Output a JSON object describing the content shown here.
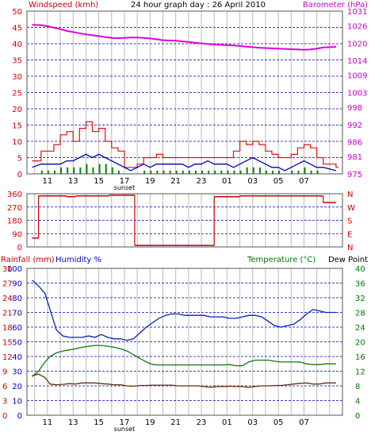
{
  "header": {
    "left_title": "Windspeed (kmh)",
    "center_title": "24 hour graph day : 26 April 2010",
    "right_title": "Barometer (hPa)"
  },
  "bottom_header": {
    "rain_label": "Rainfall (mm)",
    "humidity_label": "Humidity %",
    "temp_label": "Temperature (°C)",
    "dew_label": "Dew Point"
  },
  "colors": {
    "wind": "#cc0000",
    "gust": "#dd1111",
    "avg_wind": "#0000bb",
    "low_wind": "#008800",
    "barometer": "#e000e0",
    "direction": "#cc0000",
    "humidity": "#0022bb",
    "temperature": "#117711",
    "dewpoint": "#663300",
    "grid_h": "#0000aa",
    "grid_v": "#bbbbbb",
    "left_axis": "#cc0000",
    "right_axis_top": "#cc00cc",
    "right_axis_bottom": "#007700",
    "humidity_axis": "#0000cc"
  },
  "chart_data": [
    {
      "type": "line",
      "name": "wind-barometer",
      "title": "24 hour graph day : 26 April 2010",
      "x_tick_labels": [
        "11",
        "13",
        "15",
        "17",
        "19",
        "21",
        "23",
        "01",
        "03",
        "05",
        "07"
      ],
      "x_marker": "sunset",
      "y_left": {
        "label": "Windspeed (kmh)",
        "ticks": [
          0,
          5,
          10,
          15,
          20,
          25,
          30,
          35,
          40,
          45,
          50
        ],
        "range": [
          0,
          50
        ]
      },
      "y_right": {
        "label": "Barometer (hPa)",
        "ticks": [
          975,
          981,
          986,
          992,
          998,
          1003,
          1009,
          1014,
          1020,
          1026,
          1031
        ],
        "range": [
          975,
          1031
        ]
      },
      "hours": [
        9.8,
        10.5,
        11,
        11.5,
        12,
        12.5,
        13,
        13.5,
        14,
        14.5,
        15,
        15.5,
        16,
        16.5,
        17,
        17.5,
        18,
        18.5,
        19,
        19.5,
        20,
        20.5,
        21,
        21.5,
        22,
        22.5,
        23,
        23.5,
        24,
        24.5,
        25,
        25.5,
        26,
        26.5,
        27,
        27.5,
        28,
        28.5,
        29,
        29.5,
        30,
        30.5,
        31,
        31.5,
        32,
        32.5,
        33.5
      ],
      "series": [
        {
          "name": "Barometer",
          "axis": "right",
          "values": [
            1026.3,
            1026.2,
            1025.8,
            1025.3,
            1024.8,
            1024.2,
            1023.8,
            1023.4,
            1023,
            1022.7,
            1022.4,
            1022.1,
            1021.8,
            1021.7,
            1021.8,
            1021.9,
            1021.9,
            1021.8,
            1021.6,
            1021.3,
            1021.0,
            1020.9,
            1020.8,
            1020.6,
            1020.4,
            1020.1,
            1019.9,
            1019.7,
            1019.5,
            1019.4,
            1019.3,
            1019.2,
            1019.0,
            1018.8,
            1018.6,
            1018.4,
            1018.3,
            1018.2,
            1018.1,
            1018.0,
            1017.9,
            1017.8,
            1017.7,
            1017.8,
            1018.1,
            1018.5,
            1018.7
          ]
        },
        {
          "name": "Gust",
          "axis": "left",
          "values": [
            4,
            7,
            7,
            9,
            12,
            13,
            10,
            14,
            16,
            13,
            14,
            10,
            8,
            7,
            2,
            2,
            3,
            5,
            5,
            6,
            5,
            5,
            5,
            5,
            5,
            5,
            5,
            5,
            5,
            5,
            5,
            7,
            10,
            9,
            10,
            9,
            7,
            6,
            5,
            5,
            6,
            8,
            9,
            8,
            5,
            3,
            2
          ]
        },
        {
          "name": "Average",
          "axis": "left",
          "values": [
            2,
            3,
            3,
            3,
            3,
            4,
            4,
            5,
            6,
            5,
            6,
            5,
            4,
            3,
            2,
            1,
            2,
            3,
            2,
            3,
            3,
            3,
            3,
            3,
            2,
            3,
            3,
            4,
            3,
            3,
            3,
            2,
            3,
            4,
            5,
            4,
            3,
            2,
            2,
            1,
            2,
            3,
            4,
            3,
            2,
            2,
            1
          ]
        },
        {
          "name": "Low",
          "axis": "left",
          "values": [
            0,
            1,
            1,
            1,
            2,
            2,
            2,
            2,
            3,
            2,
            3,
            3,
            2,
            1,
            0,
            0,
            0,
            1,
            1,
            1,
            1,
            1,
            1,
            1,
            1,
            1,
            1,
            1,
            1,
            1,
            1,
            1,
            1,
            2,
            2,
            2,
            1,
            1,
            1,
            0,
            1,
            1,
            2,
            1,
            1,
            0,
            0
          ]
        }
      ]
    },
    {
      "type": "line",
      "name": "wind-direction",
      "y_left_ticks": [
        0,
        90,
        180,
        270,
        360
      ],
      "y_right_ticks": [
        "N",
        "E",
        "S",
        "W",
        "N"
      ],
      "range": [
        0,
        360
      ],
      "segments": [
        {
          "from": 9.8,
          "to": 10.3,
          "value": 60
        },
        {
          "from": 10.3,
          "to": 12.5,
          "value": 345
        },
        {
          "from": 12.5,
          "to": 13.2,
          "value": 340
        },
        {
          "from": 13.2,
          "to": 15.8,
          "value": 345
        },
        {
          "from": 15.8,
          "to": 17.8,
          "value": 350
        },
        {
          "from": 17.8,
          "to": 24.0,
          "value": 10
        },
        {
          "from": 24.0,
          "to": 26.0,
          "value": 340
        },
        {
          "from": 26.0,
          "to": 32.5,
          "value": 345
        },
        {
          "from": 32.5,
          "to": 33.5,
          "value": 300
        }
      ]
    },
    {
      "type": "line",
      "name": "rain-humidity-temperature",
      "x_tick_labels": [
        "11",
        "13",
        "15",
        "17",
        "19",
        "21",
        "23",
        "01",
        "03",
        "05",
        "07"
      ],
      "x_marker": "sunset",
      "y_left_outer": {
        "label": "Rainfall (mm)",
        "ticks": [
          0,
          3,
          6,
          9,
          12,
          15,
          18,
          21,
          24,
          27,
          30
        ],
        "range": [
          0,
          30
        ]
      },
      "y_left_inner": {
        "label": "Humidity %",
        "ticks": [
          0,
          10,
          20,
          30,
          40,
          50,
          60,
          70,
          80,
          90,
          100
        ],
        "range": [
          0,
          100
        ]
      },
      "y_right": {
        "label": "Temperature (°C)",
        "ticks": [
          0,
          4,
          8,
          12,
          16,
          20,
          24,
          28,
          32,
          36,
          40
        ],
        "range": [
          0,
          40
        ]
      },
      "hours": [
        9.8,
        10.3,
        10.8,
        11.2,
        11.7,
        12.2,
        12.7,
        13.2,
        13.7,
        14.2,
        14.7,
        15.2,
        15.7,
        16.2,
        16.7,
        17.2,
        17.7,
        18.2,
        18.7,
        19.2,
        19.7,
        20.2,
        20.7,
        21.2,
        21.7,
        22.2,
        22.7,
        23.2,
        23.7,
        24.2,
        24.7,
        25.2,
        25.7,
        26.2,
        26.7,
        27.2,
        27.7,
        28.2,
        28.7,
        29.2,
        29.7,
        30.2,
        30.7,
        31.2,
        31.7,
        32.2,
        32.7,
        33.2,
        33.5
      ],
      "series": [
        {
          "name": "Humidity",
          "axis": "humidity",
          "values": [
            92,
            88,
            83,
            72,
            58,
            54,
            53,
            53,
            53,
            54,
            53,
            55,
            53,
            52,
            52,
            51,
            52,
            56,
            60,
            63,
            66,
            68,
            69,
            69,
            68,
            68,
            68,
            68,
            67,
            67,
            67,
            66,
            66,
            67,
            68,
            68,
            67,
            64,
            61,
            60,
            61,
            62,
            65,
            69,
            72,
            71,
            70,
            70,
            70
          ]
        },
        {
          "name": "Temperature",
          "axis": "temperature",
          "values": [
            10.5,
            12,
            14.5,
            16,
            17,
            17.5,
            17.8,
            18.1,
            18.5,
            18.8,
            19,
            19,
            18.8,
            18.5,
            18.1,
            17.5,
            16.5,
            15.5,
            14.5,
            13.8,
            13.7,
            13.7,
            13.7,
            13.7,
            13.7,
            13.7,
            13.7,
            13.7,
            13.7,
            13.7,
            13.7,
            13.8,
            13.5,
            13.5,
            14.5,
            15,
            15,
            15,
            14.7,
            14.5,
            14.5,
            14.5,
            14.5,
            14,
            13.8,
            13.8,
            14,
            14,
            14
          ]
        },
        {
          "name": "Dew Point",
          "axis": "temperature",
          "values": [
            10.8,
            11.2,
            10.3,
            8.5,
            8.3,
            8.4,
            8.6,
            8.5,
            8.8,
            8.8,
            8.8,
            8.6,
            8.5,
            8.3,
            8.3,
            8.0,
            7.9,
            8.1,
            8.1,
            8.2,
            8.2,
            8.2,
            8.2,
            8.0,
            8.0,
            8.0,
            8.0,
            7.8,
            7.6,
            7.8,
            7.8,
            7.9,
            7.8,
            7.8,
            7.6,
            7.8,
            8.0,
            8.0,
            8.1,
            8.1,
            8.3,
            8.5,
            8.7,
            8.8,
            8.5,
            8.5,
            8.8,
            8.8,
            8.8
          ]
        }
      ]
    }
  ]
}
